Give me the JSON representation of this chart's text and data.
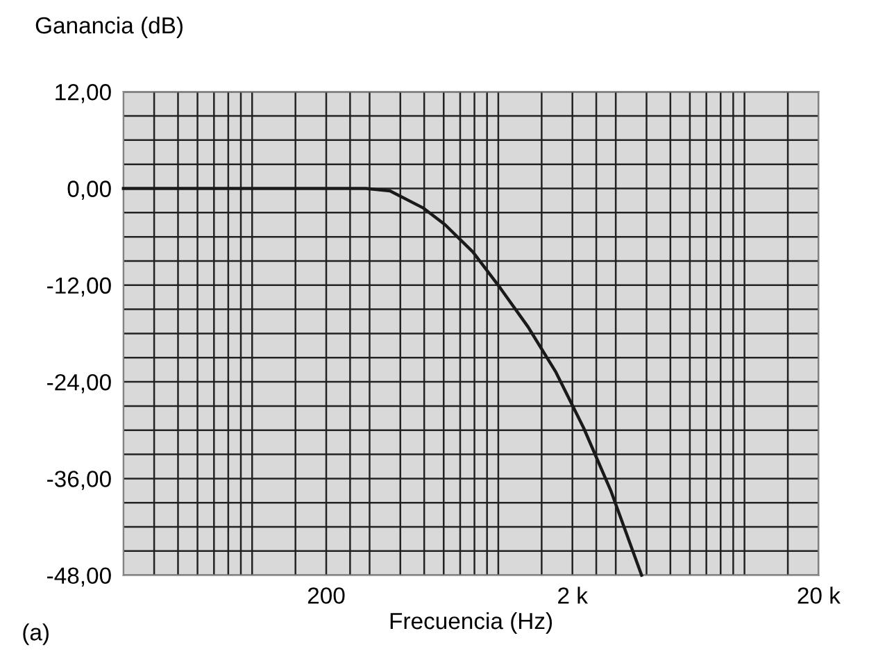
{
  "chart_data": {
    "type": "line",
    "ylabel": "Ganancia (dB)",
    "xlabel": "Frecuencia (Hz)",
    "annotations": [
      "(a)"
    ],
    "log": "x",
    "grid": true,
    "marker": "none",
    "line_style": "solid",
    "xlim": [
      30,
      20000
    ],
    "ylim": [
      -48,
      12
    ],
    "xticks": [
      {
        "value": 200,
        "label": "200"
      },
      {
        "value": 2000,
        "label": "2 k"
      },
      {
        "value": 20000,
        "label": "20 k"
      }
    ],
    "yticks": [
      {
        "value": 12,
        "label": "12,00"
      },
      {
        "value": 0,
        "label": "0,00"
      },
      {
        "value": -12,
        "label": "-12,00"
      },
      {
        "value": -24,
        "label": "-24,00"
      },
      {
        "value": -36,
        "label": "-36,00"
      },
      {
        "value": -48,
        "label": "-48,00"
      }
    ],
    "series": [
      {
        "color": "#1a1a1a",
        "x": [
          30,
          100,
          200,
          290,
          363,
          494,
          608,
          789,
          1021,
          1322,
          1714,
          2220,
          2872,
          3820
        ],
        "values": [
          0,
          0,
          0,
          0,
          -0.3,
          -2.4,
          -4.5,
          -7.9,
          -12.4,
          -17.2,
          -22.8,
          -29.7,
          -37.6,
          -48
        ]
      }
    ]
  }
}
